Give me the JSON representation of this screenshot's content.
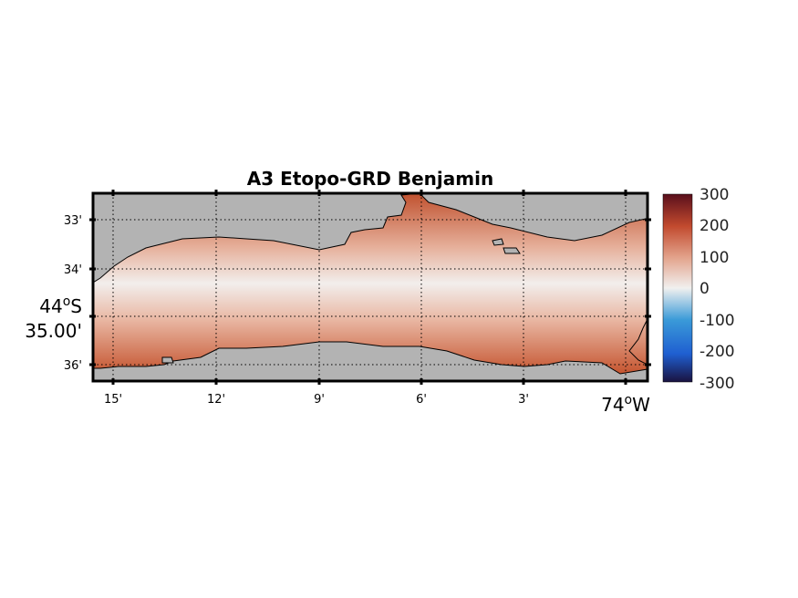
{
  "title": "A3 Etopo-GRD Benjamin",
  "map": {
    "x_ticks": [
      "15'",
      "12'",
      "9'",
      "6'",
      "3'"
    ],
    "x_ref_label": "74",
    "x_ref_suffix": "W",
    "y_ticks": [
      "33'",
      "34'",
      "36'"
    ],
    "y_ref_label_line1": "44",
    "y_ref_suffix": "S",
    "y_ref_label_line2": "35.00'",
    "degree_symbol": "o",
    "land_color": "#b3b3b3",
    "grid": true
  },
  "colorbar": {
    "ticks": [
      "300",
      "200",
      "100",
      "0",
      "-100",
      "-200",
      "-300"
    ],
    "min": -300,
    "max": 300,
    "colors": [
      "#1a1240",
      "#1f5fd1",
      "#3a9ad8",
      "#f1f0ef",
      "#e3a48d",
      "#c24a2e",
      "#5a0f1c"
    ]
  }
}
